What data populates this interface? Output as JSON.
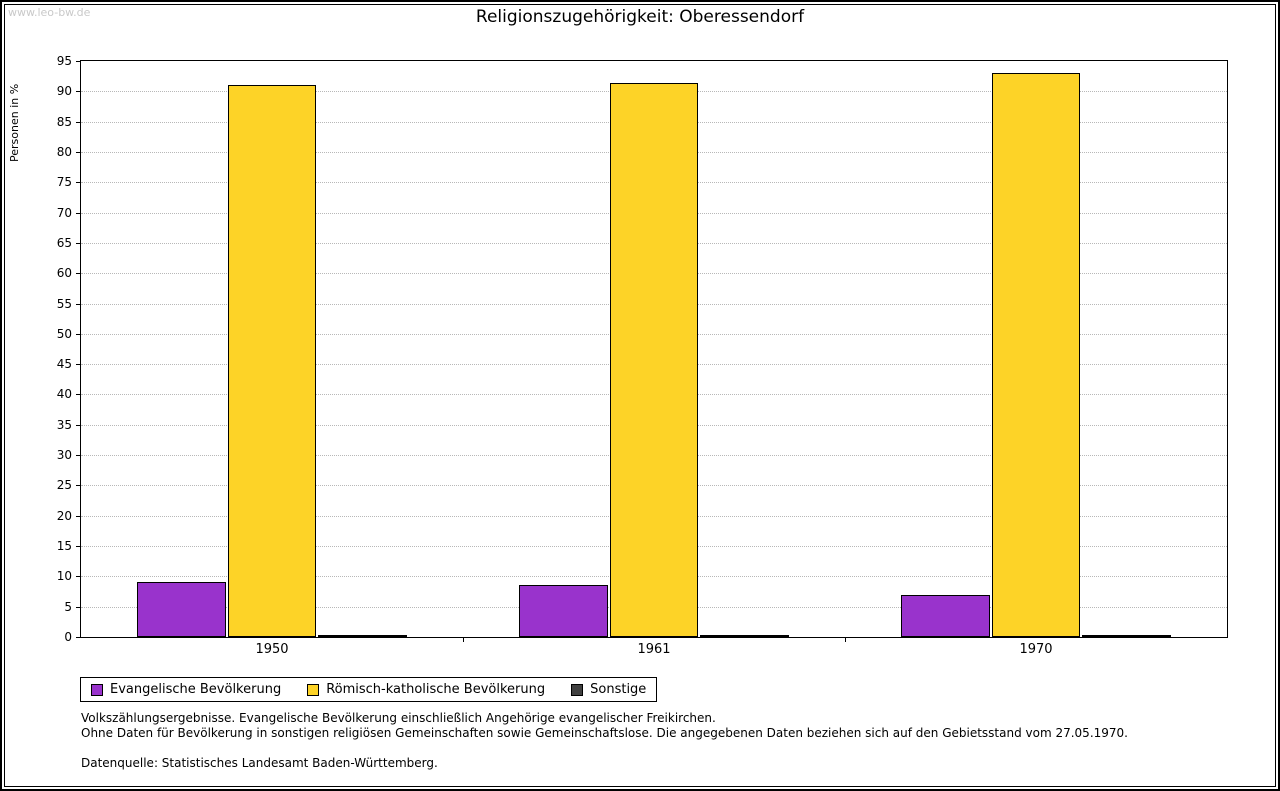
{
  "watermark": "www.leo-bw.de",
  "title": "Religionszugehörigkeit: Oberessendorf",
  "chart_data": {
    "type": "bar",
    "title": "Religionszugehörigkeit: Oberessendorf",
    "xlabel": "",
    "ylabel": "Personen in %",
    "ylim": [
      0,
      95
    ],
    "ytick_step": 5,
    "grid": "horizontal-dotted",
    "legend_position": "bottom-left",
    "categories": [
      "1950",
      "1961",
      "1970"
    ],
    "series": [
      {
        "name": "Evangelische Bevölkerung",
        "color": "#9933cc",
        "values": [
          9,
          8.5,
          7
        ]
      },
      {
        "name": "Römisch-katholische Bevölkerung",
        "color": "#fdd327",
        "values": [
          91,
          91.4,
          93
        ]
      },
      {
        "name": "Sonstige",
        "color": "#404040",
        "values": [
          0.15,
          0.15,
          0.15
        ]
      }
    ]
  },
  "footnotes": {
    "line1": "Volkszählungsergebnisse. Evangelische Bevölkerung einschließlich Angehörige evangelischer Freikirchen.",
    "line2": "Ohne Daten für Bevölkerung in sonstigen religiösen Gemeinschaften sowie Gemeinschaftslose. Die angegebenen Daten beziehen sich auf den Gebietsstand vom 27.05.1970.",
    "source": "Datenquelle: Statistisches Landesamt Baden-Württemberg."
  }
}
